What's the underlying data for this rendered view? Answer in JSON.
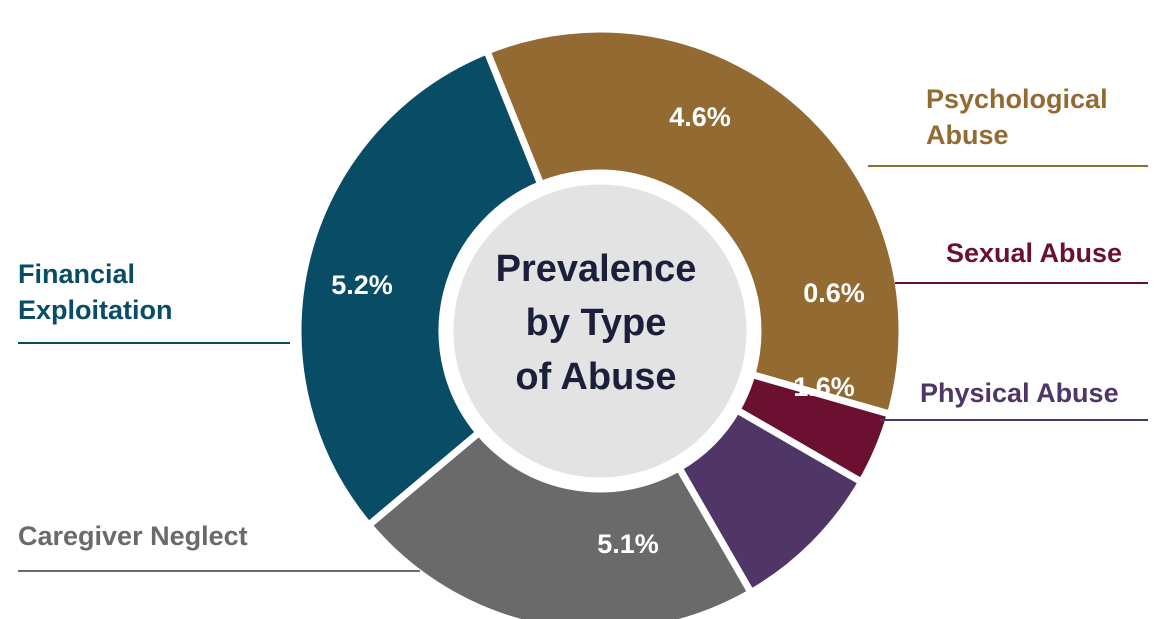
{
  "chart_data": {
    "type": "donut",
    "title": "Prevalence by Type of Abuse",
    "title_lines": [
      "Prevalence",
      "by Type",
      "of Abuse"
    ],
    "slices": [
      {
        "label": "Psychological Abuse",
        "label_lines": [
          "Psychological",
          "Abuse"
        ],
        "value": 4.6,
        "value_label": "4.6%",
        "color": "#936a32"
      },
      {
        "label": "Sexual Abuse",
        "label_lines": [
          "Sexual Abuse"
        ],
        "value": 0.6,
        "value_label": "0.6%",
        "color": "#6b1030"
      },
      {
        "label": "Physical Abuse",
        "label_lines": [
          "Physical Abuse"
        ],
        "value": 1.6,
        "value_label": "1.6%",
        "color": "#503666"
      },
      {
        "label": "Caregiver Neglect",
        "label_lines": [
          "Caregiver Neglect"
        ],
        "value": 5.1,
        "value_label": "5.1%",
        "color": "#6a6a6a"
      },
      {
        "label": "Financial Exploitation",
        "label_lines": [
          "Financial",
          "Exploitation"
        ],
        "value": 5.2,
        "value_label": "5.2%",
        "color": "#084c65"
      }
    ],
    "colors": {
      "center_fill": "#e3e3e3",
      "separator": "#ffffff",
      "center_text": "#1c1f3a"
    }
  }
}
